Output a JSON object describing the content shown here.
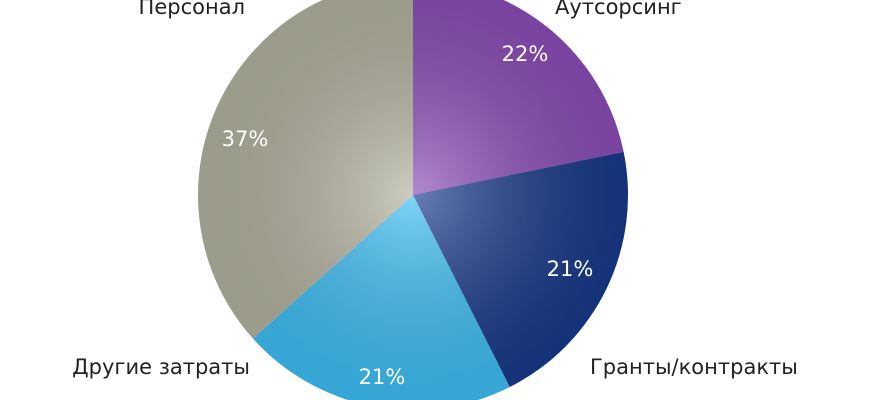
{
  "chart_data": {
    "type": "pie",
    "categories": [
      "Аутсорсинг",
      "Гранты/контракты",
      "Другие затраты",
      "Персонал"
    ],
    "values": [
      22,
      21,
      21,
      37
    ],
    "value_labels": [
      "22%",
      "21%",
      "21%",
      "37%"
    ],
    "colors": [
      "#8a4cb6",
      "#17398a",
      "#3cbdf3",
      "#b2b19f"
    ]
  }
}
